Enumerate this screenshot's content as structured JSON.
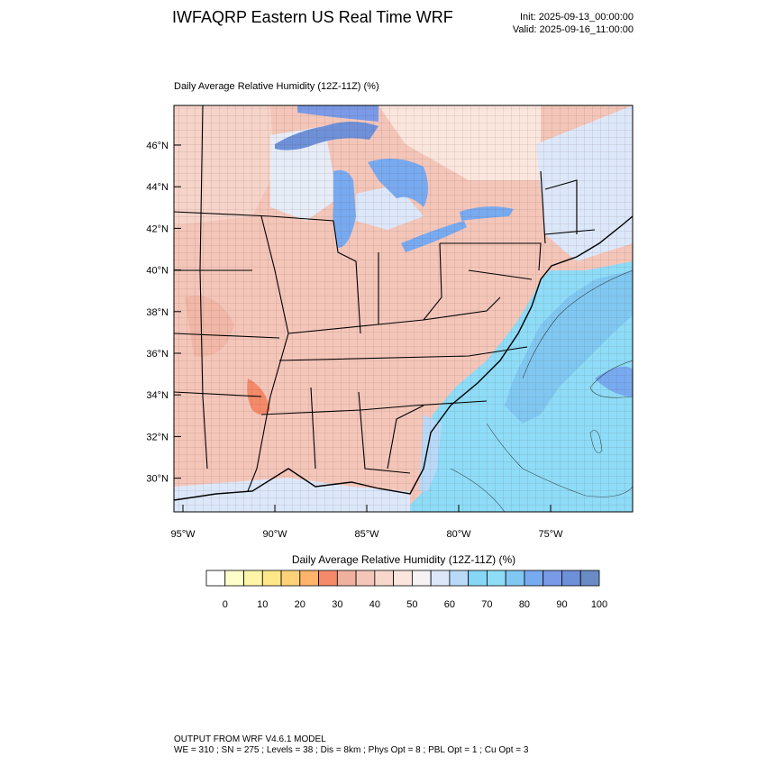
{
  "header": {
    "title": "IWFAQRP Eastern US Real Time WRF",
    "init": "Init: 2025-09-13_00:00:00",
    "valid": "Valid: 2025-09-16_11:00:00"
  },
  "map": {
    "subtitle": "Daily Average Relative Humidity (12Z-11Z)   (%)",
    "lat_labels": [
      "46°N",
      "44°N",
      "42°N",
      "40°N",
      "38°N",
      "36°N",
      "34°N",
      "32°N",
      "30°N"
    ],
    "lon_labels": [
      "95°W",
      "90°W",
      "85°W",
      "80°W",
      "75°W"
    ]
  },
  "colorbar": {
    "title": "Daily Average Relative Humidity (12Z-11Z)  (%)",
    "tick_labels": [
      "0",
      "10",
      "20",
      "30",
      "40",
      "50",
      "60",
      "70",
      "80",
      "90",
      "100"
    ],
    "colors": [
      "#ffffff",
      "#ffffcc",
      "#fff5a8",
      "#ffe888",
      "#ffd27a",
      "#ffb46a",
      "#f48a6a",
      "#f0b0a0",
      "#f4c6ba",
      "#f8d8cc",
      "#fbe6de",
      "#f6f2f4",
      "#dce8fa",
      "#b8daf8",
      "#86d6f6",
      "#8edcf8",
      "#80c8f2",
      "#78aaf0",
      "#7a9ae8",
      "#6e90d8",
      "#6a8cc4"
    ]
  },
  "footer": {
    "line1": "OUTPUT FROM WRF V4.6.1 MODEL",
    "line2": "WE = 310 ; SN = 275 ; Levels = 38 ; Dis = 8km ; Phys Opt = 8 ; PBL Opt = 1 ; Cu Opt = 3"
  }
}
